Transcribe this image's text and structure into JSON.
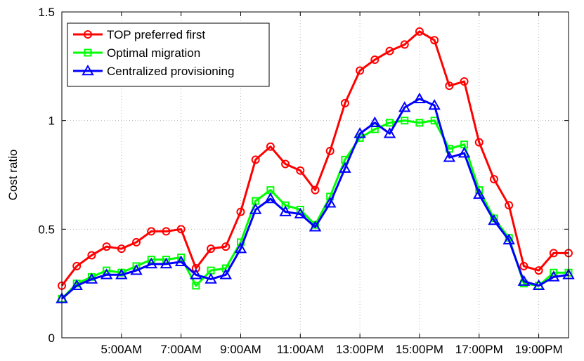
{
  "chart_data": {
    "type": "line",
    "xlabel": "",
    "ylabel": "Cost ratio",
    "xlim": [
      3.0,
      20.0
    ],
    "ylim": [
      0,
      1.5
    ],
    "grid": true,
    "legend_position": "top-left",
    "x_ticks": [
      {
        "value": 5,
        "label": "5:00AM"
      },
      {
        "value": 7,
        "label": "7:00AM"
      },
      {
        "value": 9,
        "label": "9:00AM"
      },
      {
        "value": 11,
        "label": "11:00AM"
      },
      {
        "value": 13,
        "label": "13:00PM"
      },
      {
        "value": 15,
        "label": "15:00PM"
      },
      {
        "value": 17,
        "label": "17:00PM"
      },
      {
        "value": 19,
        "label": "19:00PM"
      }
    ],
    "y_ticks": [
      {
        "value": 0,
        "label": "0"
      },
      {
        "value": 0.5,
        "label": "0.5"
      },
      {
        "value": 1,
        "label": "1"
      },
      {
        "value": 1.5,
        "label": "1.5"
      }
    ],
    "x": [
      3.0,
      3.5,
      4.0,
      4.5,
      5.0,
      5.5,
      6.0,
      6.5,
      7.0,
      7.5,
      8.0,
      8.5,
      9.0,
      9.5,
      10.0,
      10.5,
      11.0,
      11.5,
      12.0,
      12.5,
      13.0,
      13.5,
      14.0,
      14.5,
      15.0,
      15.5,
      16.0,
      16.5,
      17.0,
      17.5,
      18.0,
      18.5,
      19.0,
      19.5,
      20.0
    ],
    "series": [
      {
        "name": "TOP preferred first",
        "color": "#ff0000",
        "marker": "circle",
        "values": [
          0.24,
          0.33,
          0.38,
          0.42,
          0.41,
          0.44,
          0.49,
          0.49,
          0.5,
          0.32,
          0.41,
          0.42,
          0.58,
          0.82,
          0.88,
          0.8,
          0.77,
          0.68,
          0.86,
          1.08,
          1.23,
          1.28,
          1.32,
          1.35,
          1.41,
          1.37,
          1.16,
          1.18,
          0.9,
          0.73,
          0.61,
          0.33,
          0.31,
          0.39,
          0.39
        ]
      },
      {
        "name": "Optimal migration",
        "color": "#00ff00",
        "marker": "square",
        "values": [
          0.18,
          0.25,
          0.28,
          0.31,
          0.3,
          0.33,
          0.36,
          0.36,
          0.37,
          0.24,
          0.31,
          0.32,
          0.44,
          0.63,
          0.68,
          0.61,
          0.59,
          0.52,
          0.65,
          0.82,
          0.92,
          0.96,
          0.99,
          1.0,
          0.99,
          1.0,
          0.87,
          0.89,
          0.68,
          0.55,
          0.46,
          0.25,
          0.24,
          0.3,
          0.3
        ]
      },
      {
        "name": "Centralized provisioning",
        "color": "#0000ff",
        "marker": "triangle",
        "values": [
          0.18,
          0.24,
          0.27,
          0.29,
          0.29,
          0.31,
          0.34,
          0.34,
          0.35,
          0.29,
          0.27,
          0.29,
          0.41,
          0.59,
          0.64,
          0.58,
          0.57,
          0.51,
          0.62,
          0.78,
          0.94,
          0.99,
          0.94,
          1.06,
          1.1,
          1.07,
          0.83,
          0.85,
          0.66,
          0.54,
          0.45,
          0.26,
          0.24,
          0.28,
          0.29
        ]
      }
    ]
  }
}
